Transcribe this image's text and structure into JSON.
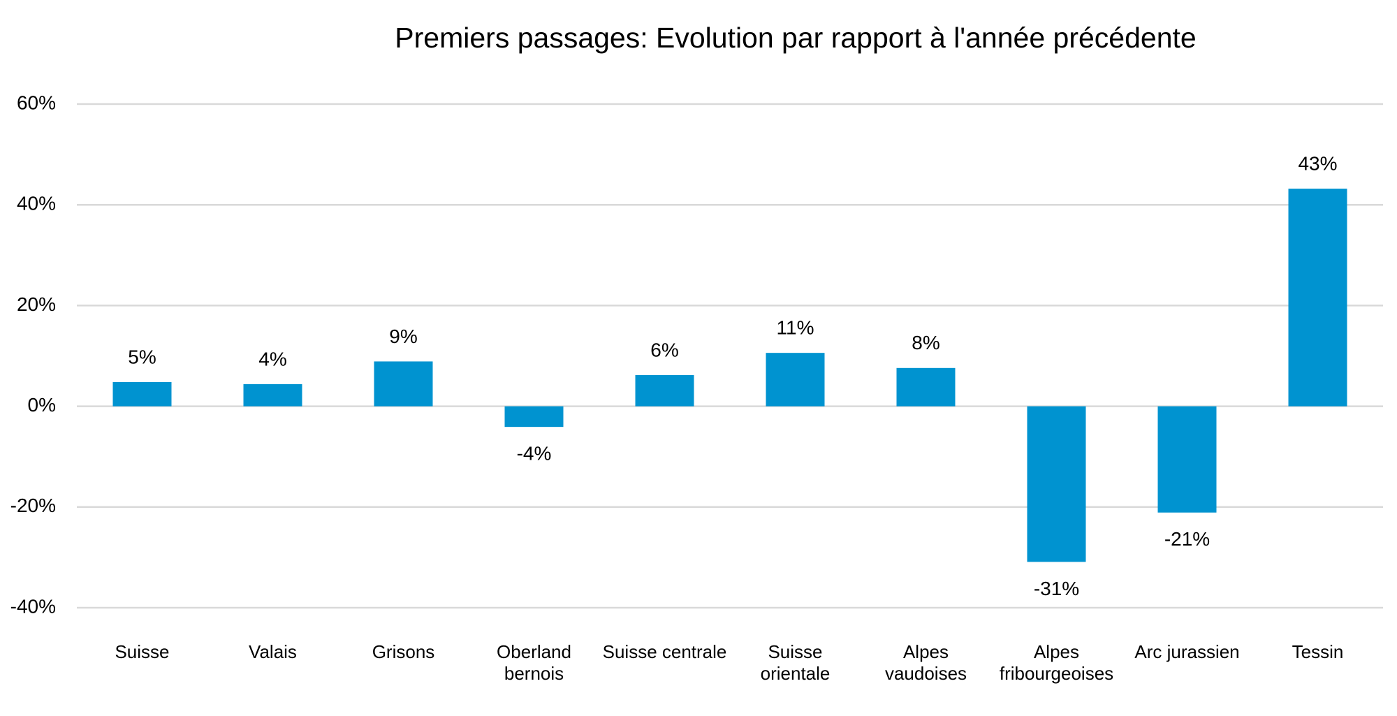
{
  "chart_data": {
    "type": "bar",
    "title": "Premiers passages: Evolution par rapport à l'année précédente",
    "categories": [
      "Suisse",
      "Valais",
      "Grisons",
      "Oberland\nbernois",
      "Suisse centrale",
      "Suisse\norientale",
      "Alpes\nvaudoises",
      "Alpes\nfribourgeoises",
      "Arc jurassien",
      "Tessin"
    ],
    "values": [
      4.8,
      4.4,
      8.9,
      -4.1,
      6.2,
      10.6,
      7.6,
      -30.9,
      -21.1,
      43.2
    ],
    "value_labels": [
      "5%",
      "4%",
      "9%",
      "-4%",
      "6%",
      "11%",
      "8%",
      "-31%",
      "-21%",
      "43%"
    ],
    "color": "#0093d0",
    "ylim": [
      -40,
      60
    ],
    "yticks": [
      {
        "value": -40,
        "label": "-40%"
      },
      {
        "value": -20,
        "label": "-20%"
      },
      {
        "value": 0,
        "label": "0%"
      },
      {
        "value": 20,
        "label": "20%"
      },
      {
        "value": 40,
        "label": "40%"
      },
      {
        "value": 60,
        "label": "60%"
      }
    ],
    "grid": true
  }
}
